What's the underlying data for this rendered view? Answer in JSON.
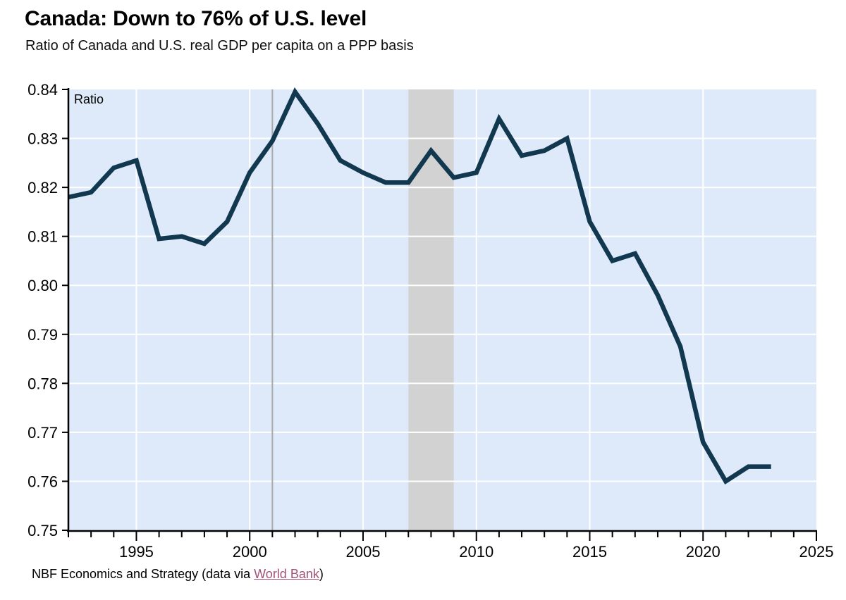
{
  "header": {
    "title": "Canada: Down to 76% of U.S. level",
    "subtitle": "Ratio of Canada and U.S. real GDP per capita on a PPP basis"
  },
  "footer": {
    "prefix": "NBF Economics and Strategy (data via ",
    "link_text": "World Bank",
    "suffix": ")"
  },
  "chart_data": {
    "type": "line",
    "title": "Canada: Down to 76% of U.S. level",
    "subtitle": "Ratio of Canada and U.S. real GDP per capita on a PPP basis",
    "ylabel": "Ratio",
    "xlabel": "",
    "xlim": [
      1992,
      2025
    ],
    "ylim": [
      0.75,
      0.84
    ],
    "grid": true,
    "legend_position": "none",
    "x_major_ticks": [
      1995,
      2000,
      2005,
      2010,
      2015,
      2020,
      2025
    ],
    "x_minor_tick_step": 1,
    "y_ticks": [
      0.75,
      0.76,
      0.77,
      0.78,
      0.79,
      0.8,
      0.81,
      0.82,
      0.83,
      0.84
    ],
    "recession_band": {
      "x0": 2007,
      "x1": 2009
    },
    "event_line_x": 2001,
    "x": [
      1992,
      1993,
      1994,
      1995,
      1996,
      1997,
      1998,
      1999,
      2000,
      2001,
      2002,
      2003,
      2004,
      2005,
      2006,
      2007,
      2008,
      2009,
      2010,
      2011,
      2012,
      2013,
      2014,
      2015,
      2016,
      2017,
      2018,
      2019,
      2020,
      2021,
      2022,
      2023
    ],
    "series": [
      {
        "name": "Canada / U.S. real GDP per capita ratio (PPP)",
        "values": [
          0.818,
          0.819,
          0.824,
          0.8255,
          0.8095,
          0.81,
          0.8085,
          0.813,
          0.823,
          0.8295,
          0.8395,
          0.833,
          0.8255,
          0.823,
          0.821,
          0.821,
          0.8275,
          0.822,
          0.823,
          0.834,
          0.8265,
          0.8275,
          0.83,
          0.813,
          0.805,
          0.8065,
          0.798,
          0.7875,
          0.768,
          0.76,
          0.763,
          0.763
        ]
      }
    ],
    "colors": {
      "line": "#12384f",
      "plot_background": "#deeaf9",
      "recession_band": "#d2d2d2",
      "event_line": "#a9a9a9",
      "gridline": "#ffffff",
      "axis": "#000000",
      "link": "#a25278"
    }
  }
}
